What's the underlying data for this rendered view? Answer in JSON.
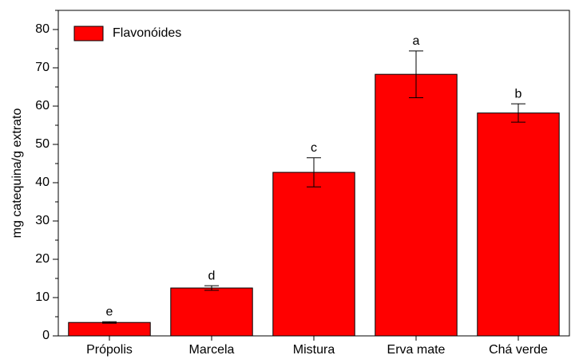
{
  "chart_data": {
    "type": "bar",
    "ylabel": "mg catequina/g extrato",
    "categories": [
      "Própolis",
      "Marcela",
      "Mistura",
      "Erva mate",
      "Chá verde"
    ],
    "series": [
      {
        "name": "Flavonóides",
        "color": "#ff0000",
        "values": [
          3.5,
          12.5,
          42.7,
          68.3,
          58.2
        ],
        "errors": [
          0.2,
          0.6,
          3.8,
          6.1,
          2.4
        ],
        "labels": [
          "e",
          "d",
          "c",
          "a",
          "b"
        ]
      }
    ],
    "ylim": [
      0,
      85
    ],
    "yticks": [
      0,
      10,
      20,
      30,
      40,
      50,
      60,
      70,
      80
    ],
    "yminor_ticks": [
      5,
      15,
      25,
      35,
      45,
      55,
      65,
      75,
      85
    ],
    "legend": "upper left"
  }
}
